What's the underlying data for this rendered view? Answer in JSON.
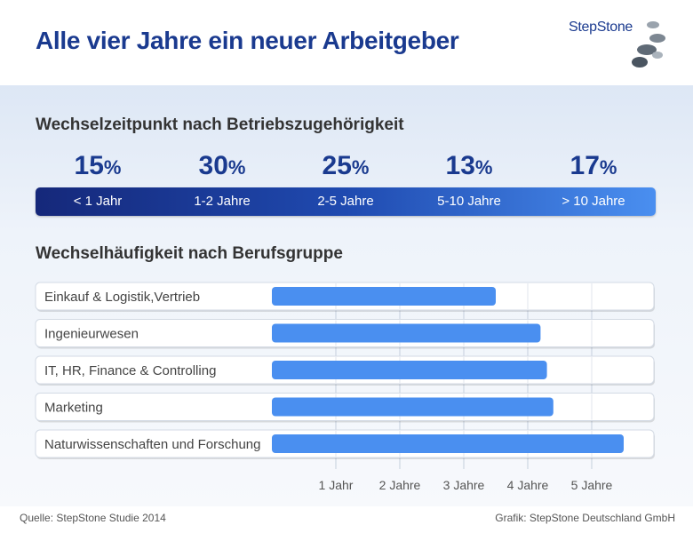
{
  "header": {
    "title": "Alle vier Jahre ein neuer Arbeitgeber",
    "logo_text": "StepStone"
  },
  "section1": {
    "title": "Wechselzeitpunkt nach Betriebszugehörigkeit",
    "items": [
      {
        "value": "15",
        "unit": "%",
        "label": "< 1 Jahr"
      },
      {
        "value": "30",
        "unit": "%",
        "label": "1-2 Jahre"
      },
      {
        "value": "25",
        "unit": "%",
        "label": "2-5 Jahre"
      },
      {
        "value": "13",
        "unit": "%",
        "label": "5-10 Jahre"
      },
      {
        "value": "17",
        "unit": "%",
        "label": "> 10 Jahre"
      }
    ]
  },
  "section2": {
    "title": "Wechselhäufigkeit nach Berufsgruppe"
  },
  "chart_data": [
    {
      "type": "table",
      "title": "Wechselzeitpunkt nach Betriebszugehörigkeit",
      "categories": [
        "< 1 Jahr",
        "1-2 Jahre",
        "2-5 Jahre",
        "5-10 Jahre",
        "> 10 Jahre"
      ],
      "values": [
        15,
        30,
        25,
        13,
        17
      ],
      "unit": "%"
    },
    {
      "type": "bar",
      "orientation": "horizontal",
      "title": "Wechselhäufigkeit nach Berufsgruppe",
      "categories": [
        "Einkauf & Logistik,Vertrieb",
        "Ingenieurwesen",
        "IT, HR, Finance & Controlling",
        "Marketing",
        "Naturwissenschaften und Forschung"
      ],
      "values": [
        3.5,
        4.2,
        4.3,
        4.4,
        5.5
      ],
      "xticks": [
        1,
        2,
        3,
        4,
        5
      ],
      "xtick_labels": [
        "1 Jahr",
        "2 Jahre",
        "3 Jahre",
        "4 Jahre",
        "5 Jahre"
      ],
      "xlim": [
        0,
        6
      ],
      "grid": true,
      "bar_color": "#4a8ff0"
    }
  ],
  "footer": {
    "source": "Quelle: StepStone Studie 2014",
    "credit": "Grafik: StepStone Deutschland GmbH"
  },
  "colors": {
    "title": "#1a3a8f",
    "bar": "#4a8ff0"
  }
}
